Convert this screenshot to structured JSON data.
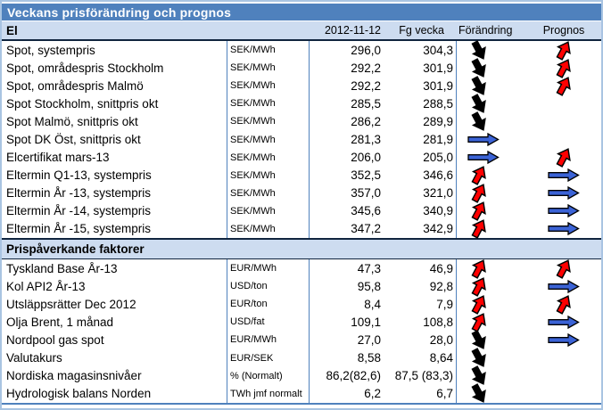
{
  "title": "Veckans prisförändring och prognos",
  "columns": {
    "date": "2012-11-12",
    "prev": "Fg vecka",
    "change": "Förändring",
    "forecast": "Prognos"
  },
  "sections": [
    {
      "label": "El",
      "rows": [
        {
          "name": "Spot, systempris",
          "unit": "SEK/MWh",
          "value": "296,0",
          "prev": "304,3",
          "change": "down",
          "forecast": "up"
        },
        {
          "name": "Spot, områdespris Stockholm",
          "unit": "SEK/MWh",
          "value": "292,2",
          "prev": "301,9",
          "change": "down",
          "forecast": "up"
        },
        {
          "name": "Spot, områdespris Malmö",
          "unit": "SEK/MWh",
          "value": "292,2",
          "prev": "301,9",
          "change": "down",
          "forecast": "up"
        },
        {
          "name": "Spot Stockholm, snittpris okt",
          "unit": "SEK/MWh",
          "value": "285,5",
          "prev": "288,5",
          "change": "down",
          "forecast": "none"
        },
        {
          "name": "Spot Malmö, snittpris okt",
          "unit": "SEK/MWh",
          "value": "286,2",
          "prev": "289,9",
          "change": "down",
          "forecast": "none"
        },
        {
          "name": "Spot DK Öst, snittpris okt",
          "unit": "SEK/MWh",
          "value": "281,3",
          "prev": "281,9",
          "change": "flat",
          "forecast": "none"
        },
        {
          "name": "Elcertifikat mars-13",
          "unit": "SEK/MWh",
          "value": "206,0",
          "prev": "205,0",
          "change": "flat",
          "forecast": "up"
        },
        {
          "name": "Eltermin Q1-13, systempris",
          "unit": "SEK/MWh",
          "value": "352,5",
          "prev": "346,6",
          "change": "up",
          "forecast": "flat"
        },
        {
          "name": "Eltermin År -13, systempris",
          "unit": "SEK/MWh",
          "value": "357,0",
          "prev": "321,0",
          "change": "up",
          "forecast": "flat"
        },
        {
          "name": "Eltermin År -14, systempris",
          "unit": "SEK/MWh",
          "value": "345,6",
          "prev": "340,9",
          "change": "up",
          "forecast": "flat"
        },
        {
          "name": "Eltermin År -15, systempris",
          "unit": "SEK/MWh",
          "value": "347,2",
          "prev": "342,9",
          "change": "up",
          "forecast": "flat"
        }
      ]
    },
    {
      "label": "Prispåverkande faktorer",
      "rows": [
        {
          "name": "Tyskland Base År-13",
          "unit": "EUR/MWh",
          "value": "47,3",
          "prev": "46,9",
          "change": "up",
          "forecast": "up"
        },
        {
          "name": "Kol API2 År-13",
          "unit": "USD/ton",
          "value": "95,8",
          "prev": "92,8",
          "change": "up",
          "forecast": "flat"
        },
        {
          "name": "Utsläppsrätter Dec 2012",
          "unit": "EUR/ton",
          "value": "8,4",
          "prev": "7,9",
          "change": "up",
          "forecast": "up"
        },
        {
          "name": "Olja Brent, 1 månad",
          "unit": "USD/fat",
          "value": "109,1",
          "prev": "108,8",
          "change": "up",
          "forecast": "flat"
        },
        {
          "name": "Nordpool gas spot",
          "unit": "EUR/MWh",
          "value": "27,0",
          "prev": "28,0",
          "change": "down",
          "forecast": "flat"
        },
        {
          "name": "Valutakurs",
          "unit": "EUR/SEK",
          "value": "8,58",
          "prev": "8,64",
          "change": "down",
          "forecast": "none"
        },
        {
          "name": "Nordiska magasinsnivåer",
          "unit": "% (Normalt)",
          "value": "86,2(82,6)",
          "prev": "87,5 (83,3)",
          "change": "down",
          "forecast": "none"
        },
        {
          "name": "Hydrologisk balans Norden",
          "unit": "TWh jmf normalt",
          "value": "6,2",
          "prev": "6,7",
          "change": "down",
          "forecast": "none"
        }
      ]
    }
  ],
  "colors": {
    "header_bg": "#4F81BD",
    "subheader_bg": "#CDDCF0",
    "grid_border": "#4F81BD",
    "frame_border": "#A9C4E2",
    "arrow_up": "#FF0000",
    "arrow_down": "#000000",
    "arrow_flat": "#3B63D6"
  }
}
